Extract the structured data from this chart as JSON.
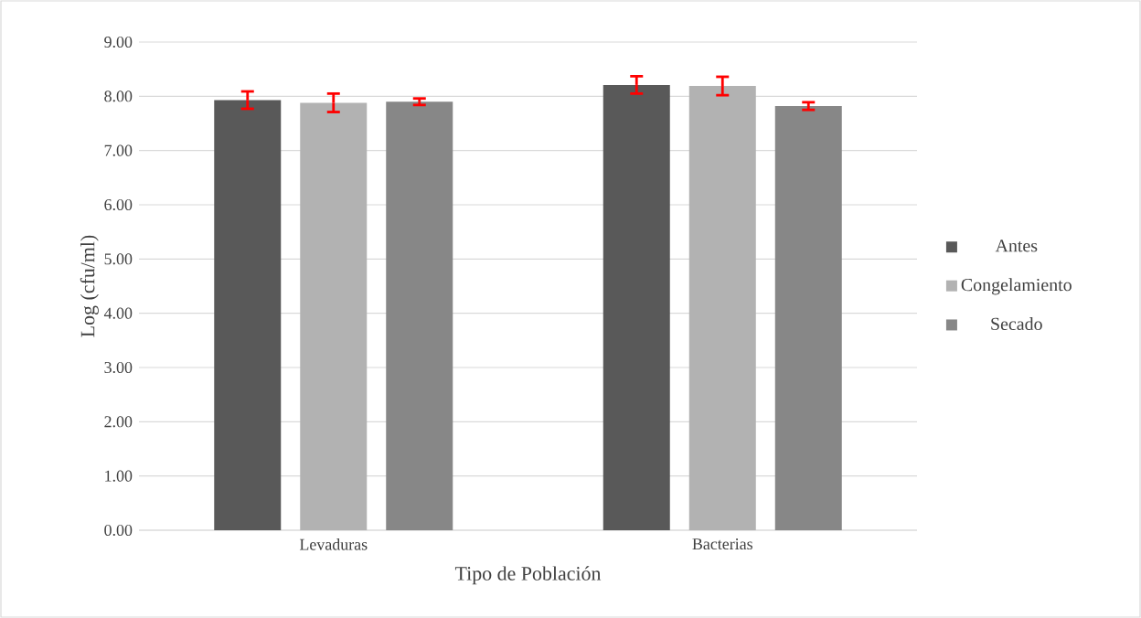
{
  "chart_data": {
    "type": "bar",
    "xlabel": "Tipo de Población",
    "ylabel": "Log  (cfu/ml)",
    "categories": [
      "Levaduras",
      "Bacterias"
    ],
    "series": [
      {
        "name": "Antes",
        "color": "#595959",
        "values": [
          7.93,
          8.21
        ],
        "errors": [
          0.16,
          0.16
        ]
      },
      {
        "name": "Congelamiento",
        "color": "#b2b2b2",
        "values": [
          7.88,
          8.19
        ],
        "errors": [
          0.17,
          0.17
        ]
      },
      {
        "name": "Secado",
        "color": "#878787",
        "values": [
          7.9,
          7.82
        ],
        "errors": [
          0.06,
          0.07
        ]
      }
    ],
    "ylim": [
      0,
      9
    ],
    "yticks": [
      {
        "value": 0,
        "label": "0.00"
      },
      {
        "value": 1,
        "label": "1.00"
      },
      {
        "value": 2,
        "label": "2.00"
      },
      {
        "value": 3,
        "label": "3.00"
      },
      {
        "value": 4,
        "label": "4.00"
      },
      {
        "value": 5,
        "label": "5.00"
      },
      {
        "value": 6,
        "label": "6.00"
      },
      {
        "value": 7,
        "label": "7.00"
      },
      {
        "value": 8,
        "label": "8.00"
      },
      {
        "value": 9,
        "label": "9.00"
      }
    ],
    "grid": "y",
    "legend": "right"
  }
}
